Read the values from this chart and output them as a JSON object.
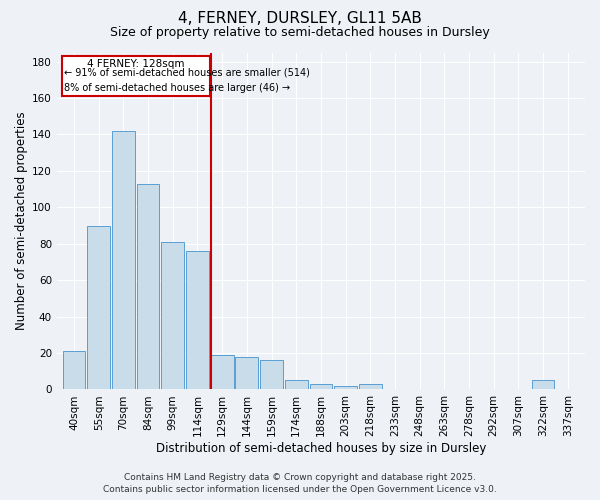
{
  "title": "4, FERNEY, DURSLEY, GL11 5AB",
  "subtitle": "Size of property relative to semi-detached houses in Dursley",
  "xlabel": "Distribution of semi-detached houses by size in Dursley",
  "ylabel": "Number of semi-detached properties",
  "categories": [
    "40sqm",
    "55sqm",
    "70sqm",
    "84sqm",
    "99sqm",
    "114sqm",
    "129sqm",
    "144sqm",
    "159sqm",
    "174sqm",
    "188sqm",
    "203sqm",
    "218sqm",
    "233sqm",
    "248sqm",
    "263sqm",
    "278sqm",
    "292sqm",
    "307sqm",
    "322sqm",
    "337sqm"
  ],
  "values": [
    21,
    90,
    142,
    113,
    81,
    76,
    19,
    18,
    16,
    5,
    3,
    2,
    3,
    0,
    0,
    0,
    0,
    0,
    0,
    5,
    0
  ],
  "bar_color": "#c8dcea",
  "bar_edge_color": "#5a9fd4",
  "property_line_label": "4 FERNEY: 128sqm",
  "annotation_line1": "← 91% of semi-detached houses are smaller (514)",
  "annotation_line2": "8% of semi-detached houses are larger (46) →",
  "annotation_box_color": "#cc0000",
  "ylim": [
    0,
    185
  ],
  "yticks": [
    0,
    20,
    40,
    60,
    80,
    100,
    120,
    140,
    160,
    180
  ],
  "footer_line1": "Contains HM Land Registry data © Crown copyright and database right 2025.",
  "footer_line2": "Contains public sector information licensed under the Open Government Licence v3.0.",
  "background_color": "#eef2f7",
  "title_fontsize": 11,
  "subtitle_fontsize": 9,
  "axis_label_fontsize": 8.5,
  "tick_fontsize": 7.5,
  "annotation_fontsize": 7.5,
  "footer_fontsize": 6.5
}
